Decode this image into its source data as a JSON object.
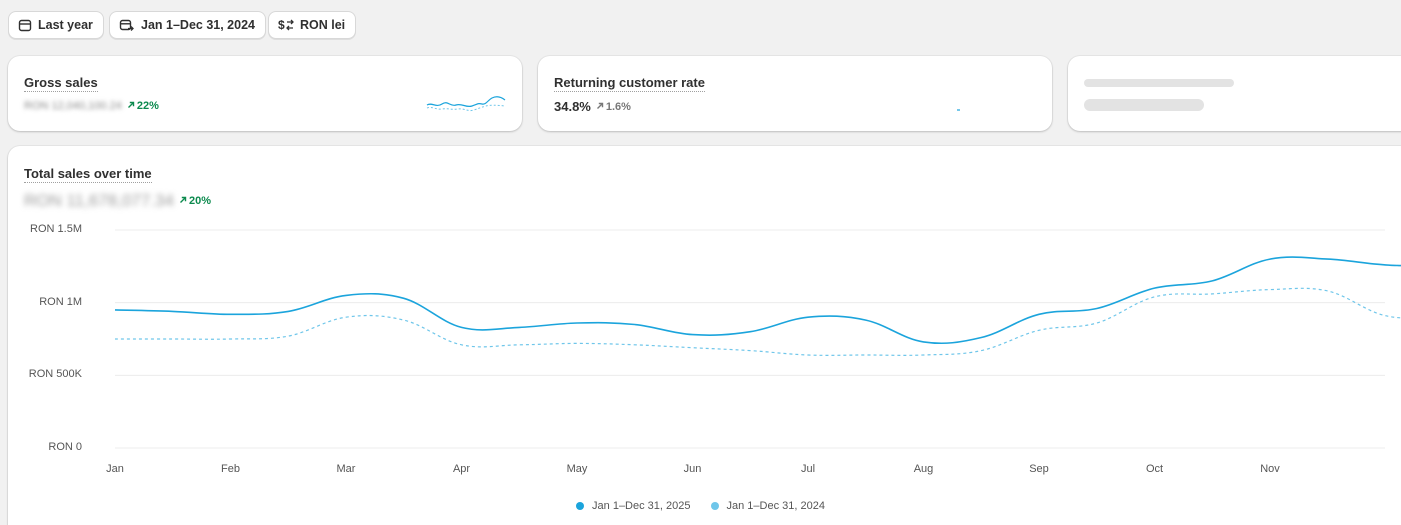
{
  "filters": {
    "period_label": "Last year",
    "date_range_label": "Jan 1–Dec 31, 2024",
    "currency_label": "RON lei"
  },
  "cards": {
    "gross_sales": {
      "title": "Gross sales",
      "value": "RON 12,040,100.24",
      "delta": "22%"
    },
    "returning_rate": {
      "title": "Returning customer rate",
      "value": "34.8%",
      "delta": "1.6%"
    }
  },
  "main_chart": {
    "title": "Total sales over time",
    "value": "RON 11,678,077.34",
    "delta": "20%"
  },
  "colors": {
    "primary": "#1ba4dc",
    "comparison": "#6fc6ea",
    "positive": "#0c8a4e"
  },
  "chart_data": {
    "type": "line",
    "y_ticks": [
      "RON 1.5M",
      "RON 1M",
      "RON 500K",
      "RON 0"
    ],
    "ylim": [
      0,
      1500000
    ],
    "x_ticks": [
      "Jan",
      "Feb",
      "Mar",
      "Apr",
      "May",
      "Jun",
      "Jul",
      "Aug",
      "Sep",
      "Oct",
      "Nov"
    ],
    "grid": true,
    "legend": "bottom-center",
    "series": [
      {
        "name": "Jan 1–Dec 31, 2025",
        "style": "solid",
        "x": [
          0,
          0.5,
          1,
          1.5,
          2,
          2.5,
          3,
          3.5,
          4,
          4.5,
          5,
          5.5,
          6,
          6.5,
          7,
          7.5,
          8,
          8.5,
          9,
          9.5,
          10,
          10.5,
          11,
          11.5
        ],
        "values": [
          950000,
          940000,
          920000,
          940000,
          1050000,
          1030000,
          830000,
          830000,
          860000,
          850000,
          780000,
          800000,
          900000,
          880000,
          730000,
          760000,
          920000,
          960000,
          1100000,
          1150000,
          1300000,
          1300000,
          1260000,
          1250000
        ]
      },
      {
        "name": "Jan 1–Dec 31, 2024",
        "style": "dashed",
        "x": [
          0,
          0.5,
          1,
          1.5,
          2,
          2.5,
          3,
          3.5,
          4,
          4.5,
          5,
          5.5,
          6,
          6.5,
          7,
          7.5,
          8,
          8.5,
          9,
          9.5,
          10,
          10.5,
          11,
          11.5
        ],
        "values": [
          750000,
          750000,
          750000,
          770000,
          900000,
          880000,
          710000,
          710000,
          720000,
          710000,
          690000,
          670000,
          640000,
          640000,
          640000,
          670000,
          810000,
          860000,
          1040000,
          1060000,
          1090000,
          1080000,
          910000,
          900000
        ]
      }
    ]
  }
}
